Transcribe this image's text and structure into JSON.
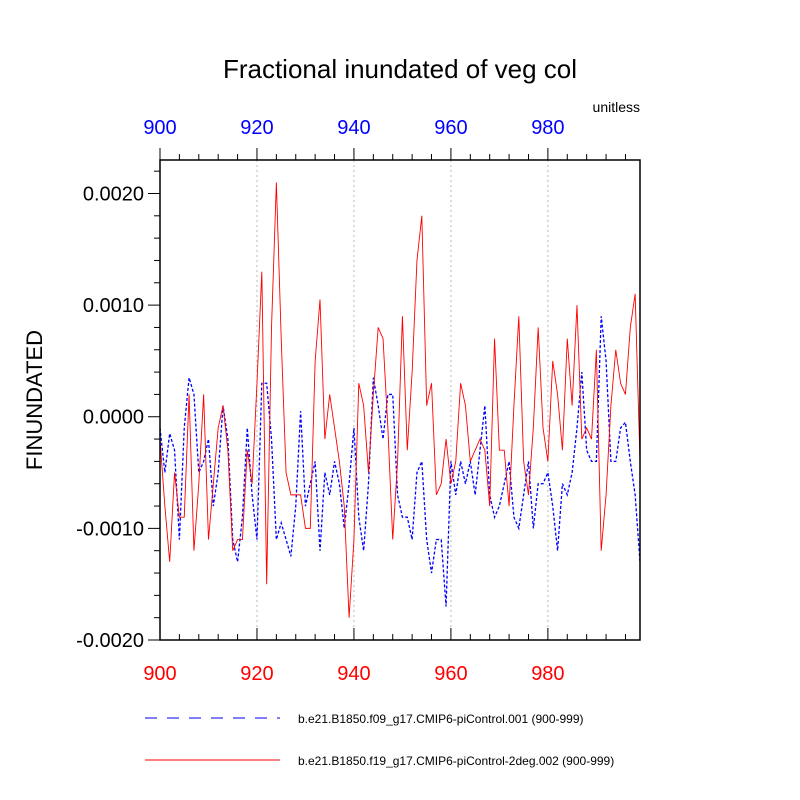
{
  "chart_data": {
    "type": "line",
    "title": "Fractional inundated of veg col",
    "units": "unitless",
    "ylabel": "FINUNDATED",
    "xlabel": "",
    "xlim": [
      900,
      999
    ],
    "ylim": [
      -0.002,
      0.0023
    ],
    "x_ticks": [
      "900",
      "920",
      "940",
      "960",
      "980"
    ],
    "x_tick_values": [
      900,
      920,
      940,
      960,
      980
    ],
    "y_ticks": [
      "0.0020",
      "0.0010",
      "0.0000",
      "-0.0010",
      "-0.0020"
    ],
    "y_tick_values": [
      0.002,
      0.001,
      0.0,
      -0.001,
      -0.002
    ],
    "top_axis_color": "#0000ff",
    "bottom_axis_color": "#ff0000",
    "grid": "vertical dotted at major x ticks",
    "x": [
      900,
      901,
      902,
      903,
      904,
      905,
      906,
      907,
      908,
      909,
      910,
      911,
      912,
      913,
      914,
      915,
      916,
      917,
      918,
      919,
      920,
      921,
      922,
      923,
      924,
      925,
      926,
      927,
      928,
      929,
      930,
      931,
      932,
      933,
      934,
      935,
      936,
      937,
      938,
      939,
      940,
      941,
      942,
      943,
      944,
      945,
      946,
      947,
      948,
      949,
      950,
      951,
      952,
      953,
      954,
      955,
      956,
      957,
      958,
      959,
      960,
      961,
      962,
      963,
      964,
      965,
      966,
      967,
      968,
      969,
      970,
      971,
      972,
      973,
      974,
      975,
      976,
      977,
      978,
      979,
      980,
      981,
      982,
      983,
      984,
      985,
      986,
      987,
      988,
      989,
      990,
      991,
      992,
      993,
      994,
      995,
      996,
      997,
      998,
      999
    ],
    "series": [
      {
        "name": "b.e21.B1850.f09_g17.CMIP6-piControl.001 (900-999)",
        "color": "#0000ff",
        "style": "dashed",
        "values": [
          -0.0001,
          -0.0005,
          -0.00015,
          -0.0003,
          -0.0011,
          -0.0001,
          0.00035,
          0.0002,
          -0.0005,
          -0.0004,
          -0.0002,
          -0.0008,
          -0.0005,
          0.0001,
          -0.0002,
          -0.0011,
          -0.0013,
          -0.0009,
          -0.0001,
          -0.0007,
          -0.0011,
          0.0003,
          0.0003,
          -0.0002,
          -0.0011,
          -0.00095,
          -0.0011,
          -0.00125,
          -0.0008,
          5e-05,
          -0.0008,
          -0.0006,
          -0.0004,
          -0.0012,
          -0.0005,
          -0.0007,
          -0.0004,
          -0.0006,
          -0.001,
          -0.0006,
          -0.0001,
          -0.0009,
          -0.0012,
          -0.0006,
          0.00035,
          0.0001,
          -0.0002,
          0.0002,
          0.0002,
          -0.0007,
          -0.0009,
          -0.0009,
          -0.0011,
          -0.0005,
          -0.0004,
          -0.0011,
          -0.0014,
          -0.0011,
          -0.0011,
          -0.0017,
          -0.0004,
          -0.0007,
          -0.0004,
          -0.0006,
          -0.0004,
          -0.0007,
          -0.0003,
          0.0001,
          -0.0007,
          -0.0009,
          -0.0008,
          -0.0006,
          -0.0004,
          -0.0009,
          -0.001,
          -0.0007,
          -0.0004,
          -0.001,
          -0.0006,
          -0.0006,
          -0.0005,
          -0.0008,
          -0.0012,
          -0.0006,
          -0.0007,
          -0.0005,
          -0.0001,
          0.0004,
          -0.0003,
          -0.0004,
          -0.0004,
          0.0009,
          0.0005,
          -0.0004,
          -0.0004,
          -0.0001,
          -5e-05,
          -0.0004,
          -0.0007,
          -0.0013
        ]
      },
      {
        "name": "b.e21.B1850.f19_g17.CMIP6-piControl-2deg.002 (900-999)",
        "color": "#ff0000",
        "style": "solid",
        "values": [
          -0.0002,
          -0.0008,
          -0.0013,
          -0.0005,
          -0.0009,
          -0.0009,
          0.0002,
          -0.0012,
          -0.0006,
          0.0002,
          -0.0011,
          -0.0006,
          -0.0001,
          0.0001,
          -0.0003,
          -0.0012,
          -0.0011,
          -0.0011,
          -0.0003,
          -0.0006,
          0.0003,
          0.0013,
          -0.0015,
          0.0008,
          0.0021,
          0.0007,
          -0.0005,
          -0.0007,
          -0.0007,
          -0.0007,
          -0.001,
          -0.001,
          0.0005,
          0.00105,
          -0.0002,
          0.0002,
          -0.0001,
          -0.0004,
          -0.0008,
          -0.0018,
          -0.0011,
          0.0003,
          0.0001,
          -0.0005,
          0.0002,
          0.0008,
          0.0007,
          -0.0001,
          -0.0011,
          -0.0004,
          0.0009,
          -0.0003,
          0.0004,
          0.0014,
          0.0018,
          0.0001,
          0.0003,
          -0.0007,
          -0.0006,
          -0.0002,
          -0.0006,
          -0.0004,
          0.0003,
          0.0001,
          -0.0004,
          -0.0003,
          -0.0002,
          -0.0003,
          -0.0008,
          0.0007,
          -0.0003,
          -0.0003,
          -0.0008,
          0.0001,
          0.0009,
          -0.0004,
          -0.0007,
          -0.0001,
          0.0008,
          -0.0001,
          -0.0004,
          0.0005,
          0.0002,
          -0.0003,
          0.0007,
          0.0001,
          0.001,
          -0.0002,
          -0.0001,
          -0.0002,
          0.0006,
          -0.0012,
          -0.0007,
          0.0001,
          0.0006,
          0.0003,
          0.0002,
          0.0008,
          0.0011,
          -0.0004
        ]
      }
    ]
  }
}
